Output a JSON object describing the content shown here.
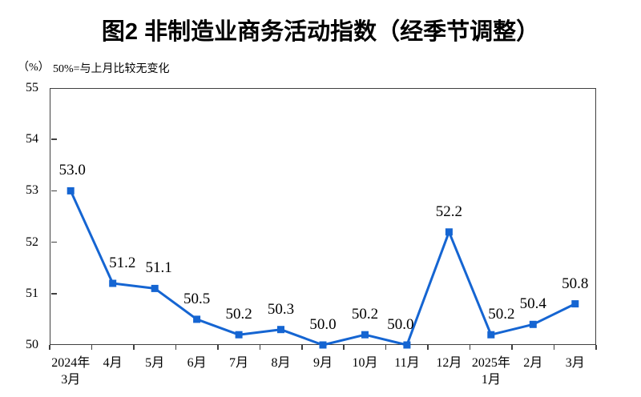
{
  "page_title": "图2 非制造业商务活动指数（经季节调整）",
  "chart_data": {
    "type": "line",
    "title": "图2 非制造业商务活动指数（经季节调整）",
    "unit_label": "（%）",
    "note": "50%=与上月比较无变化",
    "categories": [
      "2024年\n3月",
      "4月",
      "5月",
      "6月",
      "7月",
      "8月",
      "9月",
      "10月",
      "11月",
      "12月",
      "2025年\n1月",
      "2月",
      "3月"
    ],
    "series": [
      {
        "name": "非制造业商务活动指数（经季节调整）",
        "values": [
          53.0,
          51.2,
          51.1,
          50.5,
          50.2,
          50.3,
          50.0,
          50.2,
          50.0,
          52.2,
          50.2,
          50.4,
          50.8
        ]
      }
    ],
    "data_labels": [
      "53.0",
      "51.2",
      "51.1",
      "50.5",
      "50.2",
      "50.3",
      "50.0",
      "50.2",
      "50.0",
      "52.2",
      "50.2",
      "50.4",
      "50.8"
    ],
    "xlabel": "",
    "ylabel": "",
    "ylim": [
      50,
      55
    ],
    "yticks": [
      50,
      51,
      52,
      53,
      54,
      55
    ],
    "grid": false,
    "legend_position": "none",
    "line_color": "#1565d2",
    "marker": "square",
    "axis_color": "#404040",
    "label_offsets_x": [
      2,
      12,
      5,
      0,
      0,
      0,
      0,
      0,
      -8,
      0,
      13,
      0,
      0
    ]
  }
}
